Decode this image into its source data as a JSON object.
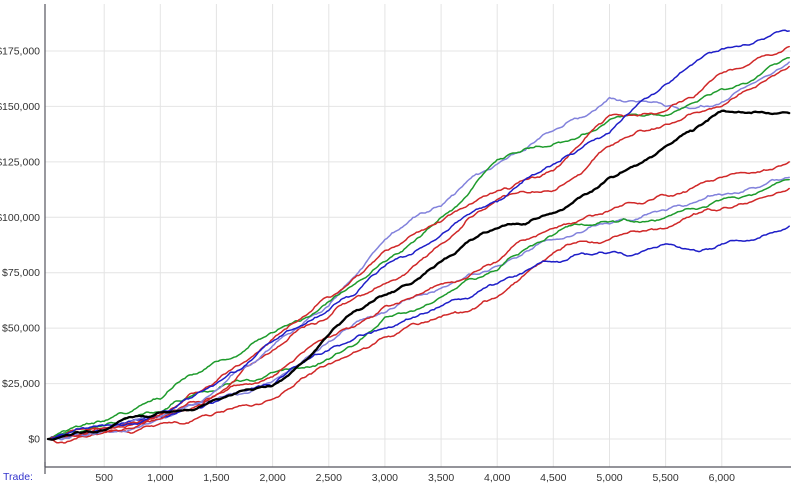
{
  "chart_data": {
    "type": "line",
    "title": "",
    "x_axis_title": "Trade:",
    "ylabel": "",
    "legend": "none",
    "grid": true,
    "background": "#FFFFFF",
    "grid_color": "#E4E4E4",
    "axis_color": "#55555E",
    "tick_label_color": "#333333",
    "x_axis_title_color": "#3333CC",
    "x_range": [
      0,
      6600
    ],
    "y_range": [
      0,
      195000
    ],
    "x_tick_values": [
      500,
      1000,
      1500,
      2000,
      2500,
      3000,
      3500,
      4000,
      4500,
      5000,
      5500,
      6000
    ],
    "x_tick_labels": [
      "500",
      "1,000",
      "1,500",
      "2,000",
      "2,500",
      "3,000",
      "3,500",
      "4,000",
      "4,500",
      "5,000",
      "5,500",
      "6,000"
    ],
    "y_tick_values": [
      0,
      25000,
      50000,
      75000,
      100000,
      125000,
      150000,
      175000
    ],
    "y_tick_labels": [
      "$0",
      "$25,000",
      "$50,000",
      "$75,000",
      "$100,000",
      "$125,000",
      "$150,000",
      "$175,000"
    ],
    "waypoint_trades": [
      0,
      500,
      1000,
      1500,
      2000,
      2500,
      3000,
      3500,
      4000,
      4500,
      5000,
      5500,
      6000,
      6600
    ],
    "series": [
      {
        "name": "red-4",
        "color": "#D02828",
        "width": 1.5,
        "seed": 11,
        "noise": 2600,
        "values": [
          0,
          3000,
          7000,
          12000,
          18000,
          34000,
          46000,
          55000,
          64000,
          84000,
          90000,
          95000,
          104000,
          113000
        ]
      },
      {
        "name": "violet-2",
        "color": "#8282DC",
        "width": 1.5,
        "seed": 22,
        "noise": 2600,
        "values": [
          0,
          4000,
          9000,
          18000,
          26000,
          44000,
          57000,
          68000,
          78000,
          90000,
          97000,
          103000,
          110000,
          118000
        ]
      },
      {
        "name": "green-2",
        "color": "#1E9B2C",
        "width": 1.5,
        "seed": 33,
        "noise": 2600,
        "values": [
          0,
          6000,
          12000,
          22000,
          30000,
          36000,
          55000,
          64000,
          76000,
          92000,
          98000,
          100000,
          108000,
          117000
        ]
      },
      {
        "name": "red-3",
        "color": "#D02828",
        "width": 1.5,
        "seed": 44,
        "noise": 2600,
        "values": [
          0,
          5000,
          11000,
          20000,
          28000,
          46000,
          60000,
          70000,
          80000,
          95000,
          103000,
          110000,
          118000,
          125000
        ]
      },
      {
        "name": "blue-2",
        "color": "#1E1EC8",
        "width": 1.5,
        "seed": 55,
        "noise": 2600,
        "values": [
          0,
          5000,
          10000,
          17000,
          24000,
          40000,
          50000,
          60000,
          70000,
          80000,
          84000,
          88000,
          88000,
          96000
        ]
      },
      {
        "name": "red-2",
        "color": "#D02828",
        "width": 1.5,
        "seed": 66,
        "noise": 2700,
        "values": [
          0,
          4000,
          9000,
          20000,
          40000,
          55000,
          70000,
          88000,
          108000,
          112000,
          132000,
          142000,
          150000,
          168000
        ]
      },
      {
        "name": "violet-1",
        "color": "#8282DC",
        "width": 1.5,
        "seed": 77,
        "noise": 2700,
        "values": [
          0,
          5000,
          10000,
          22000,
          42000,
          60000,
          90000,
          105000,
          124000,
          139000,
          154000,
          150000,
          152000,
          170000
        ]
      },
      {
        "name": "green-1",
        "color": "#1E9B2C",
        "width": 1.5,
        "seed": 88,
        "noise": 2700,
        "values": [
          0,
          8000,
          18000,
          35000,
          48000,
          62000,
          80000,
          100000,
          126000,
          133000,
          144000,
          146000,
          158000,
          172000
        ]
      },
      {
        "name": "red-1",
        "color": "#D02828",
        "width": 1.5,
        "seed": 99,
        "noise": 2700,
        "values": [
          0,
          5000,
          11000,
          26000,
          45000,
          64000,
          85000,
          98000,
          112000,
          121000,
          146000,
          148000,
          165000,
          177000
        ]
      },
      {
        "name": "blue-1",
        "color": "#1E1EC8",
        "width": 1.5,
        "seed": 123,
        "noise": 2700,
        "values": [
          0,
          6000,
          12000,
          25000,
          44000,
          58000,
          78000,
          92000,
          107000,
          124000,
          138000,
          160000,
          176000,
          184000
        ]
      },
      {
        "name": "black",
        "color": "#000000",
        "width": 2.3,
        "seed": 137,
        "noise": 2200,
        "values": [
          0,
          4000,
          12000,
          18000,
          24000,
          47000,
          65000,
          80000,
          95000,
          102000,
          118000,
          132000,
          148000,
          147000
        ]
      }
    ]
  }
}
